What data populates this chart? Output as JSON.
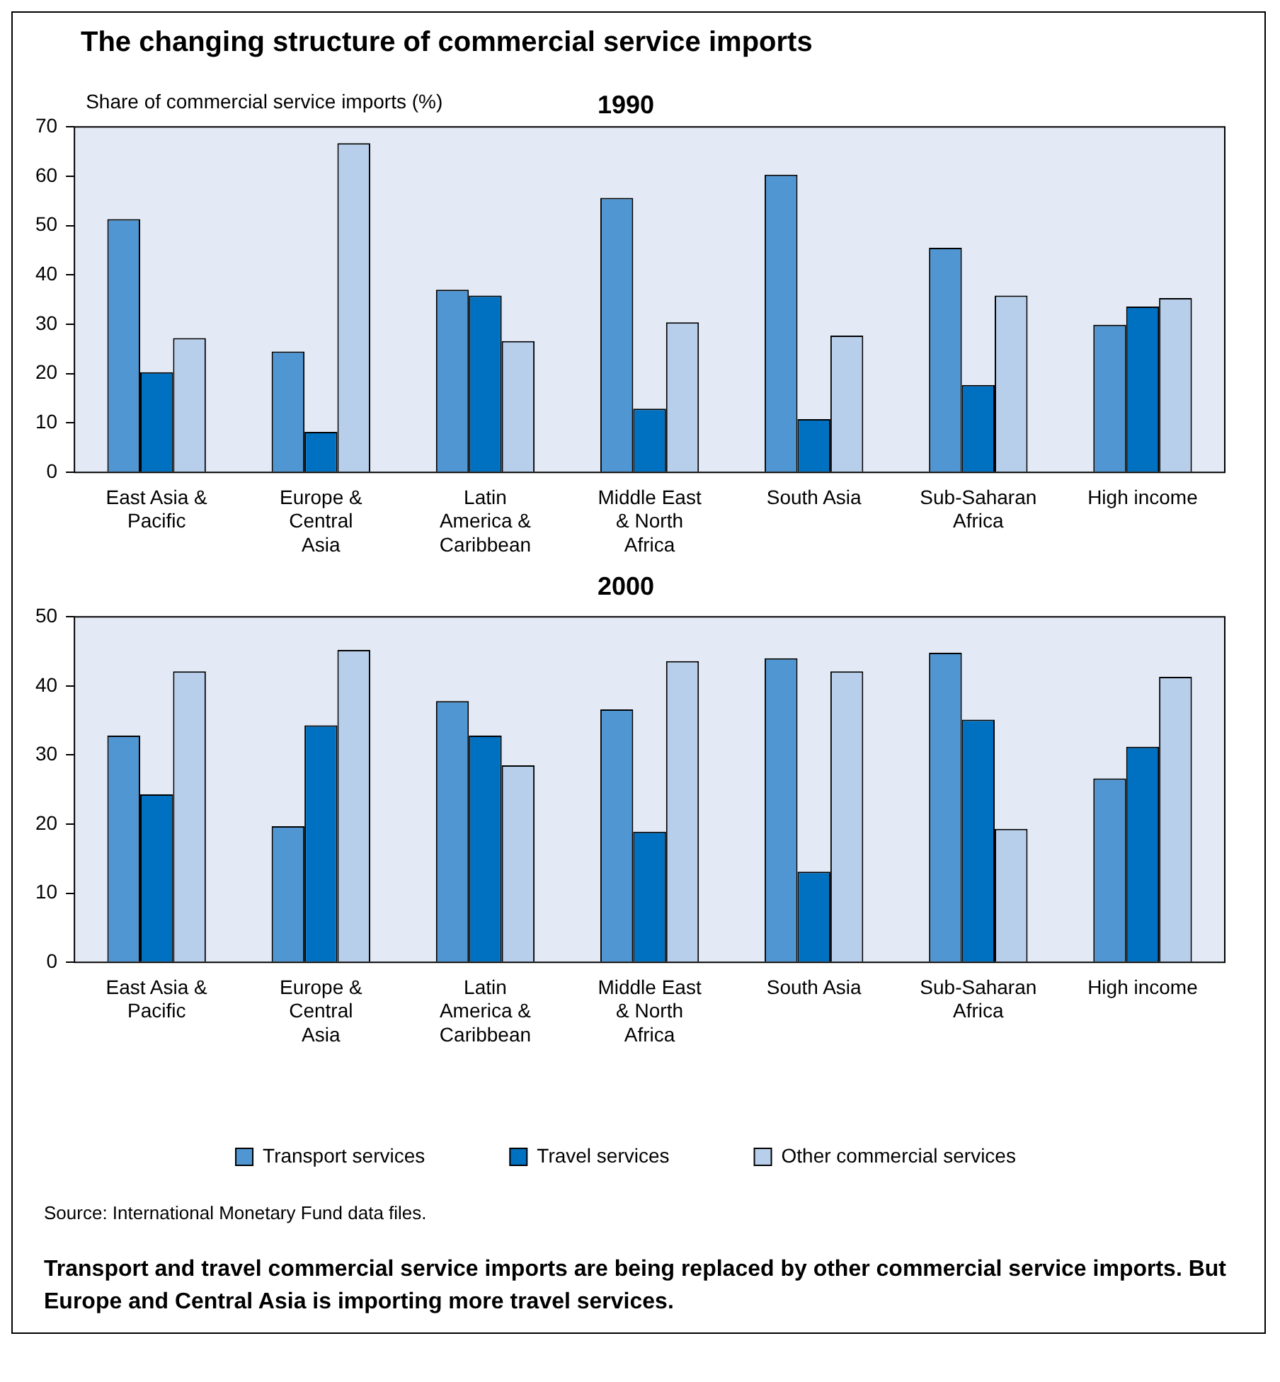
{
  "chart_data": [
    {
      "type": "bar",
      "title": "The changing structure of commercial service imports",
      "subtitle": "1990",
      "ylabel": "Share of commercial service imports (%)",
      "categories": [
        "East Asia & Pacific",
        "Europe & Central Asia",
        "Latin America & Caribbean",
        "Middle East & North Africa",
        "South Asia",
        "Sub-Saharan Africa",
        "High income"
      ],
      "series": [
        {
          "color": "#5096d2",
          "values": [
            51.3,
            24.5,
            37,
            55.6,
            60.3,
            45.5,
            29.9
          ]
        },
        {
          "color": "#0070c0",
          "values": [
            20.3,
            8.2,
            35.8,
            12.9,
            10.8,
            17.7,
            33.6
          ]
        },
        {
          "color": "#b8cfeb",
          "values": [
            27.2,
            66.7,
            26.6,
            30.4,
            27.7,
            35.8,
            35.3
          ]
        }
      ],
      "ylim": [
        0,
        70
      ],
      "yticks": [
        0,
        10,
        20,
        30,
        40,
        50,
        60,
        70
      ],
      "grid": false,
      "legend": false
    },
    {
      "type": "bar",
      "title": "2000",
      "categories": [
        "East Asia & Pacific",
        "Europe & Central Asia",
        "Latin America & Caribbean",
        "Middle East & North Africa",
        "South Asia",
        "Sub-Saharan Africa",
        "High income"
      ],
      "series": [
        {
          "name": "Transport services",
          "color": "#5096d2",
          "values": [
            32.8,
            19.7,
            37.8,
            36.6,
            44,
            44.8,
            26.6
          ]
        },
        {
          "name": "Travel services",
          "color": "#0070c0",
          "values": [
            24.3,
            34.3,
            32.8,
            18.9,
            13.1,
            35.1,
            31.2
          ]
        },
        {
          "name": "Other commercial services",
          "color": "#b8cfeb",
          "values": [
            42.1,
            45.2,
            28.5,
            43.6,
            42.1,
            19.3,
            41.3
          ]
        }
      ],
      "ylim": [
        0,
        50
      ],
      "yticks": [
        0,
        10,
        20,
        30,
        40,
        50
      ],
      "grid": false,
      "legend": "bottom",
      "annotations": [
        "Source: International Monetary Fund data files.",
        "Transport and travel commercial service imports are being replaced by other commercial service imports. But Europe and Central Asia is importing more travel services."
      ]
    }
  ]
}
